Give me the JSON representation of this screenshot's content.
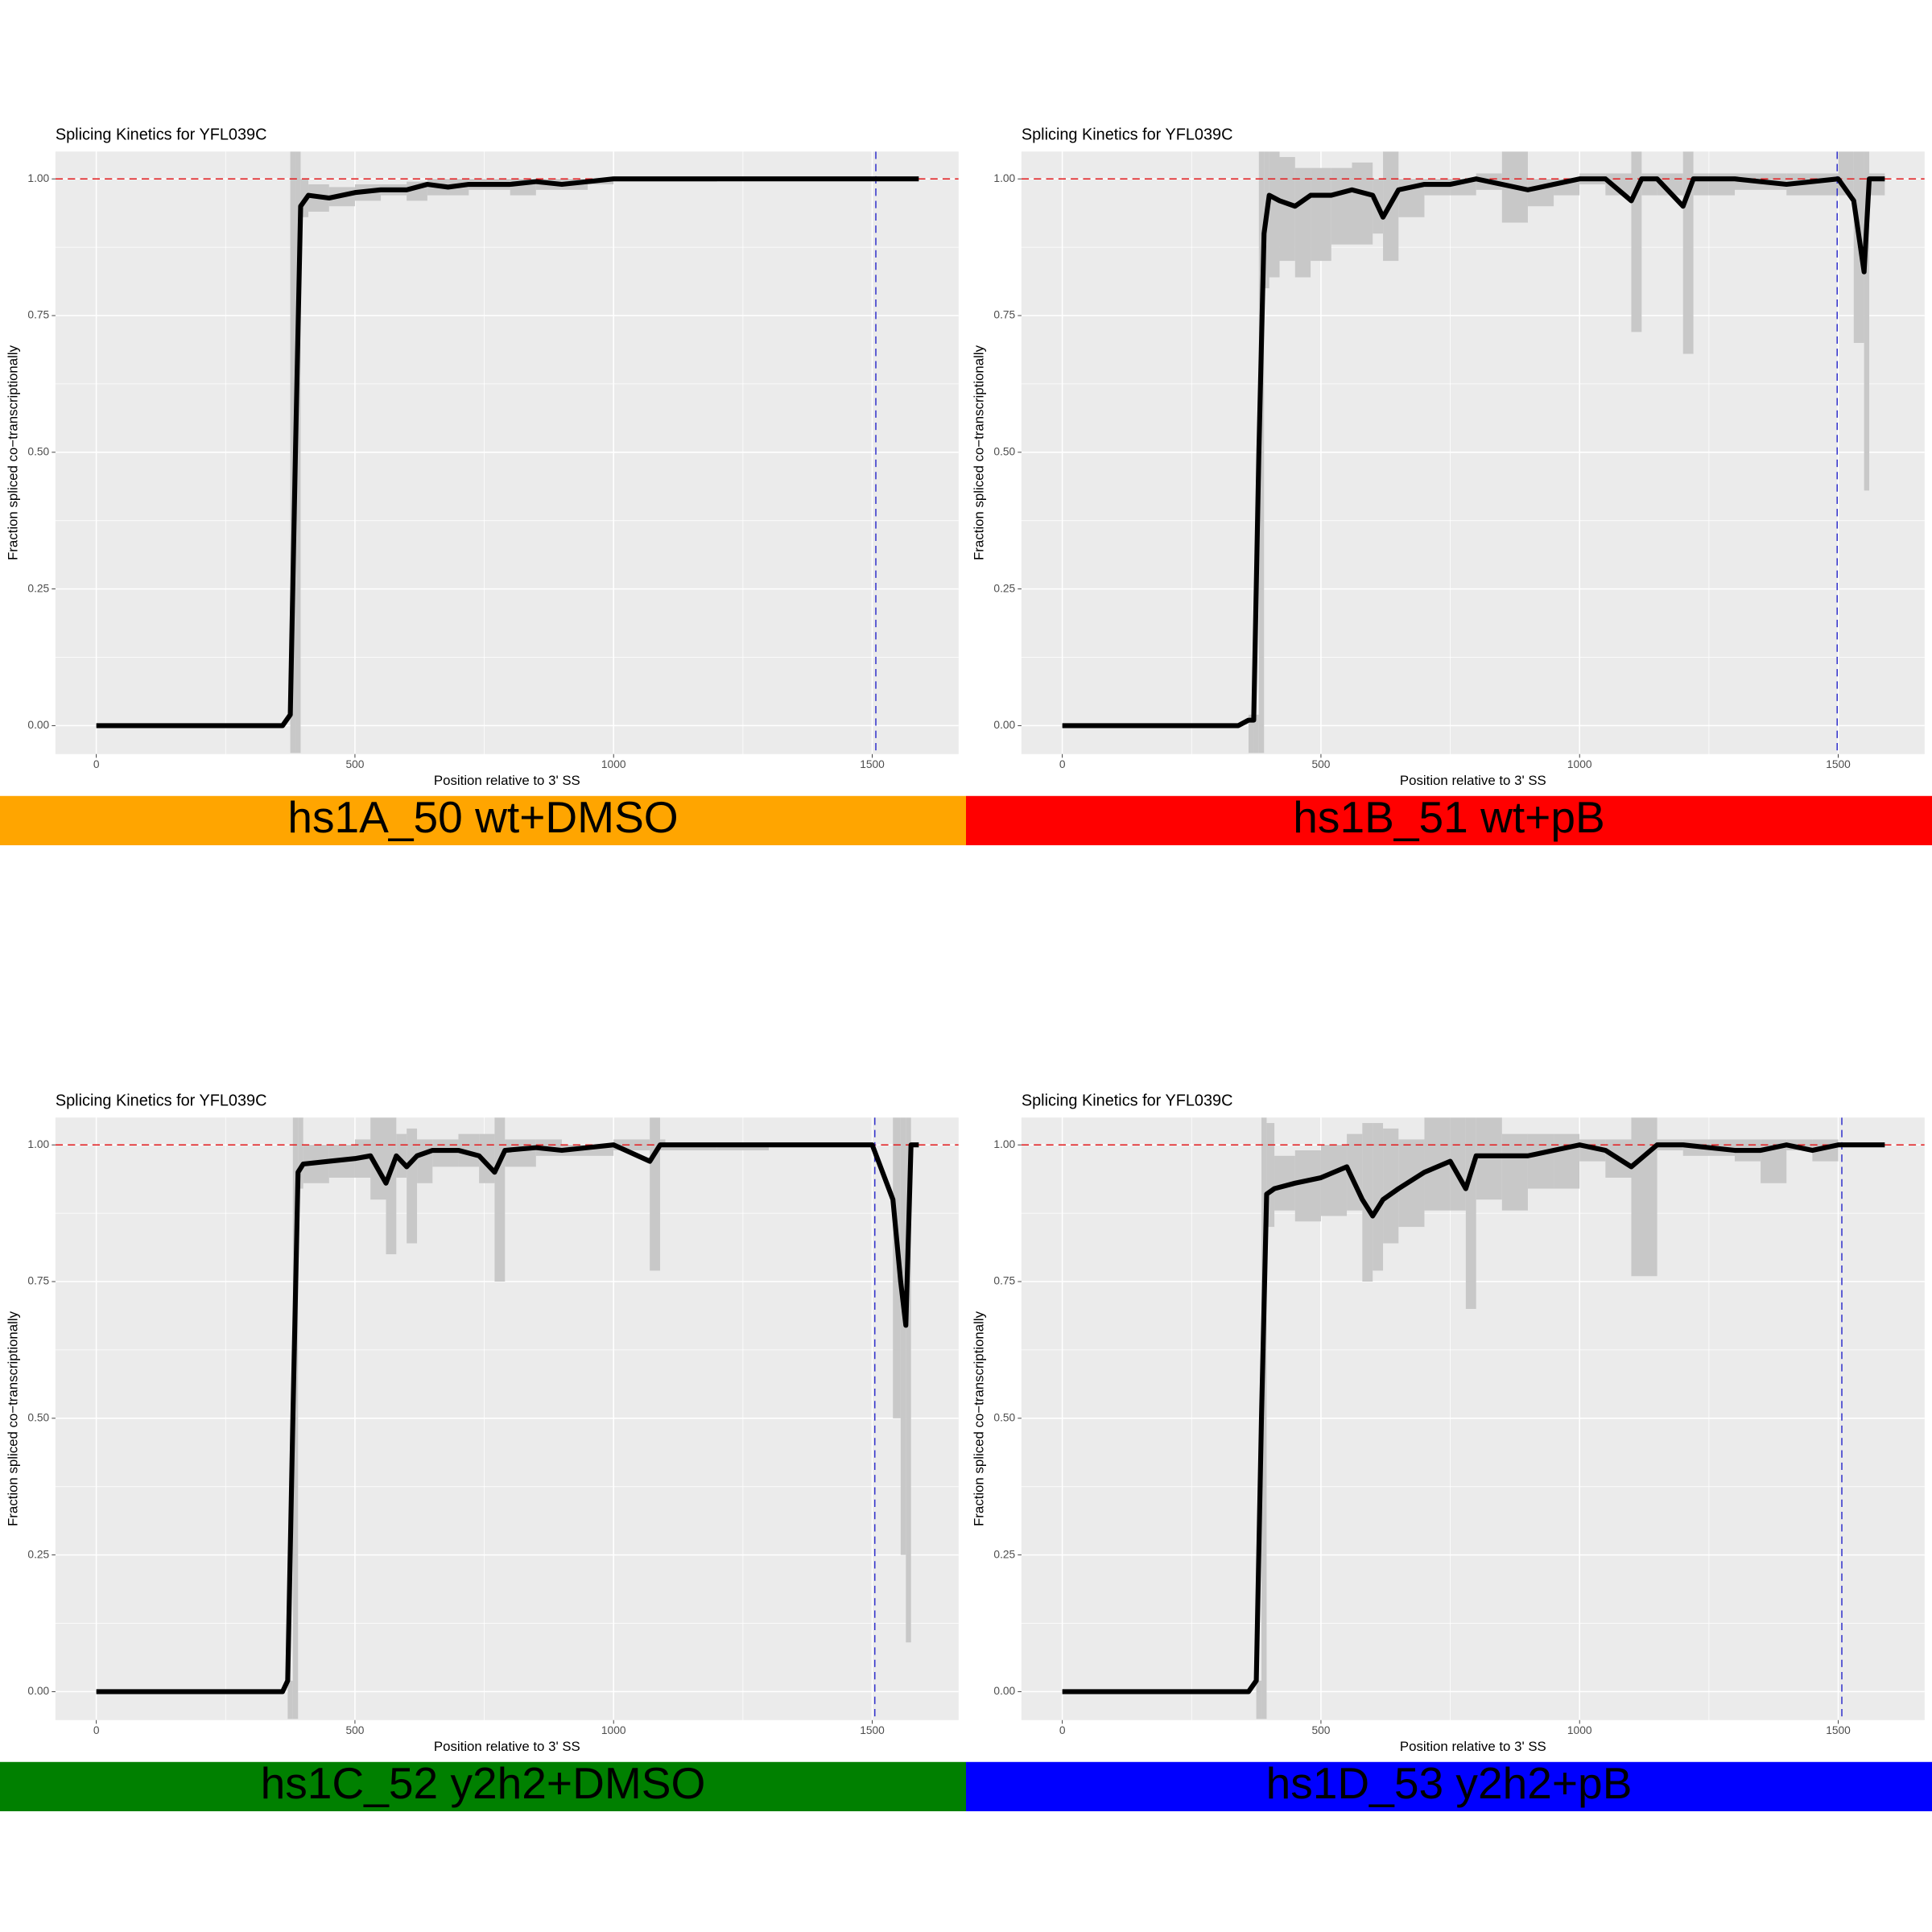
{
  "chart_data": [
    {
      "type": "line",
      "title": "Splicing Kinetics for YFL039C",
      "x_label": "Position relative to 3' SS",
      "y_label": "Fraction spliced co−transcriptionally",
      "panel_label": "hs1A_50 wt+DMSO",
      "panel_color": "#ffa500",
      "xlim": [
        -79,
        1667
      ],
      "ylim": [
        -0.052,
        1.05
      ],
      "xticks": [
        0,
        500,
        1000,
        1500
      ],
      "yticks": [
        {
          "value": 0,
          "label": "0.00"
        },
        {
          "value": 0.25,
          "label": "0.25"
        },
        {
          "value": 0.5,
          "label": "0.50"
        },
        {
          "value": 0.75,
          "label": "0.75"
        },
        {
          "value": 1,
          "label": "1.00"
        }
      ],
      "grid": true,
      "line_color": "#000000",
      "ribbon_color": "#c8c8c8",
      "hline": 1,
      "hline_color": "#e41a1c",
      "vline": 1507,
      "vline_color": "#3333cc",
      "x": [
        0,
        360,
        375,
        385,
        395,
        410,
        450,
        500,
        550,
        600,
        640,
        680,
        720,
        760,
        800,
        850,
        900,
        950,
        1000,
        1100,
        1200,
        1300,
        1400,
        1500,
        1590
      ],
      "values": [
        0,
        0,
        0.02,
        0.5,
        0.95,
        0.97,
        0.965,
        0.975,
        0.98,
        0.98,
        0.99,
        0.985,
        0.99,
        0.99,
        0.99,
        0.995,
        0.99,
        0.995,
        1,
        1,
        1,
        1,
        1,
        1,
        1
      ],
      "lower": [
        0,
        0,
        -0.05,
        -0.05,
        0.93,
        0.94,
        0.95,
        0.96,
        0.97,
        0.96,
        0.97,
        0.97,
        0.98,
        0.98,
        0.97,
        0.98,
        0.98,
        0.99,
        0.995,
        0.995,
        1,
        1,
        1,
        1,
        1
      ],
      "upper": [
        0,
        0,
        1.05,
        1.05,
        1.0,
        0.99,
        0.985,
        0.99,
        0.99,
        0.995,
        1,
        1,
        1,
        1,
        1,
        1,
        1,
        1,
        1,
        1,
        1,
        1,
        1,
        1,
        1
      ]
    },
    {
      "type": "line",
      "title": "Splicing Kinetics for YFL039C",
      "x_label": "Position relative to 3' SS",
      "y_label": "Fraction spliced co−transcriptionally",
      "panel_label": "hs1B_51 wt+pB",
      "panel_color": "#ff0000",
      "xlim": [
        -79,
        1667
      ],
      "ylim": [
        -0.052,
        1.05
      ],
      "xticks": [
        0,
        500,
        1000,
        1500
      ],
      "yticks": [
        {
          "value": 0,
          "label": "0.00"
        },
        {
          "value": 0.25,
          "label": "0.25"
        },
        {
          "value": 0.5,
          "label": "0.50"
        },
        {
          "value": 0.75,
          "label": "0.75"
        },
        {
          "value": 1,
          "label": "1.00"
        }
      ],
      "grid": true,
      "line_color": "#000000",
      "ribbon_color": "#c8c8c8",
      "hline": 1,
      "hline_color": "#e41a1c",
      "vline": 1498,
      "vline_color": "#3333cc",
      "x": [
        0,
        340,
        360,
        370,
        380,
        390,
        400,
        420,
        450,
        480,
        520,
        560,
        600,
        620,
        650,
        700,
        750,
        800,
        850,
        900,
        950,
        1000,
        1050,
        1100,
        1120,
        1150,
        1200,
        1220,
        1250,
        1300,
        1400,
        1500,
        1530,
        1550,
        1560,
        1590
      ],
      "values": [
        0,
        0,
        0.01,
        0.01,
        0.5,
        0.9,
        0.97,
        0.96,
        0.95,
        0.97,
        0.97,
        0.98,
        0.97,
        0.93,
        0.98,
        0.99,
        0.99,
        1,
        0.99,
        0.98,
        0.99,
        1,
        1,
        0.96,
        1,
        1,
        0.95,
        1,
        1,
        1,
        0.99,
        1,
        0.96,
        0.83,
        1,
        1
      ],
      "lower": [
        0,
        0,
        -0.05,
        -0.05,
        -0.05,
        0.8,
        0.82,
        0.85,
        0.82,
        0.85,
        0.88,
        0.88,
        0.9,
        0.85,
        0.93,
        0.97,
        0.97,
        0.98,
        0.92,
        0.95,
        0.97,
        0.99,
        0.97,
        0.72,
        0.97,
        0.97,
        0.68,
        0.97,
        0.97,
        0.98,
        0.97,
        0.97,
        0.7,
        0.43,
        0.97,
        1
      ],
      "upper": [
        0,
        0,
        0.02,
        0.02,
        1.05,
        1.05,
        1.05,
        1.04,
        1.02,
        1.02,
        1.02,
        1.03,
        1.0,
        1.05,
        1.0,
        1.0,
        1.0,
        1.01,
        1.05,
        1.0,
        1.0,
        1.01,
        1.01,
        1.05,
        1.01,
        1.01,
        1.05,
        1.01,
        1.01,
        1.01,
        1.01,
        1.05,
        1.05,
        1.05,
        1.01,
        1
      ]
    },
    {
      "type": "line",
      "title": "Splicing Kinetics for YFL039C",
      "x_label": "Position relative to 3' SS",
      "y_label": "Fraction spliced co−transcriptionally",
      "panel_label": "hs1C_52 y2h2+DMSO",
      "panel_color": "#008000",
      "xlim": [
        -79,
        1667
      ],
      "ylim": [
        -0.052,
        1.05
      ],
      "xticks": [
        0,
        500,
        1000,
        1500
      ],
      "yticks": [
        {
          "value": 0,
          "label": "0.00"
        },
        {
          "value": 0.25,
          "label": "0.25"
        },
        {
          "value": 0.5,
          "label": "0.50"
        },
        {
          "value": 0.75,
          "label": "0.75"
        },
        {
          "value": 1,
          "label": "1.00"
        }
      ],
      "grid": true,
      "line_color": "#000000",
      "ribbon_color": "#c8c8c8",
      "hline": 1,
      "hline_color": "#e41a1c",
      "vline": 1505,
      "vline_color": "#3333cc",
      "x": [
        0,
        360,
        370,
        380,
        390,
        400,
        450,
        500,
        530,
        560,
        580,
        600,
        620,
        650,
        700,
        740,
        770,
        790,
        850,
        900,
        1000,
        1070,
        1090,
        1100,
        1200,
        1300,
        1400,
        1500,
        1540,
        1555,
        1565,
        1575,
        1590
      ],
      "values": [
        0,
        0,
        0.02,
        0.5,
        0.95,
        0.965,
        0.97,
        0.975,
        0.98,
        0.93,
        0.98,
        0.96,
        0.98,
        0.99,
        0.99,
        0.98,
        0.95,
        0.99,
        0.995,
        0.99,
        1,
        0.97,
        1,
        1,
        1,
        1,
        1,
        1,
        0.9,
        0.75,
        0.67,
        1,
        1
      ],
      "lower": [
        0,
        0,
        -0.05,
        -0.05,
        0.92,
        0.93,
        0.94,
        0.94,
        0.9,
        0.8,
        0.94,
        0.82,
        0.93,
        0.96,
        0.96,
        0.93,
        0.75,
        0.96,
        0.98,
        0.98,
        0.99,
        0.77,
        0.99,
        0.99,
        0.99,
        1,
        1,
        1,
        0.5,
        0.25,
        0.09,
        1,
        1
      ],
      "upper": [
        0,
        0,
        0.02,
        1.05,
        1.05,
        1.0,
        1.0,
        1.01,
        1.05,
        1.05,
        1.02,
        1.03,
        1.01,
        1.01,
        1.02,
        1.02,
        1.05,
        1.01,
        1.01,
        1.0,
        1.01,
        1.05,
        1.01,
        1.0,
        1.0,
        1.0,
        1.0,
        1.0,
        1.05,
        1.05,
        1.05,
        1,
        1
      ]
    },
    {
      "type": "line",
      "title": "Splicing Kinetics for YFL039C",
      "x_label": "Position relative to 3' SS",
      "y_label": "Fraction spliced co−transcriptionally",
      "panel_label": "hs1D_53 y2h2+pB",
      "panel_color": "#0000ff",
      "xlim": [
        -79,
        1667
      ],
      "ylim": [
        -0.052,
        1.05
      ],
      "xticks": [
        0,
        500,
        1000,
        1500
      ],
      "yticks": [
        {
          "value": 0,
          "label": "0.00"
        },
        {
          "value": 0.25,
          "label": "0.25"
        },
        {
          "value": 0.5,
          "label": "0.50"
        },
        {
          "value": 0.75,
          "label": "0.75"
        },
        {
          "value": 1,
          "label": "1.00"
        }
      ],
      "grid": true,
      "line_color": "#000000",
      "ribbon_color": "#c8c8c8",
      "hline": 1,
      "hline_color": "#e41a1c",
      "vline": 1507,
      "vline_color": "#3333cc",
      "x": [
        0,
        360,
        375,
        385,
        395,
        410,
        450,
        500,
        550,
        580,
        600,
        620,
        650,
        700,
        750,
        780,
        800,
        850,
        900,
        950,
        1000,
        1050,
        1100,
        1150,
        1200,
        1300,
        1350,
        1400,
        1450,
        1500,
        1590
      ],
      "values": [
        0,
        0,
        0.02,
        0.5,
        0.91,
        0.92,
        0.93,
        0.94,
        0.96,
        0.9,
        0.87,
        0.9,
        0.92,
        0.95,
        0.97,
        0.92,
        0.98,
        0.98,
        0.98,
        0.99,
        1,
        0.99,
        0.96,
        1,
        1,
        0.99,
        0.99,
        1,
        0.99,
        1,
        1
      ],
      "lower": [
        0,
        0,
        -0.05,
        -0.05,
        0.85,
        0.88,
        0.86,
        0.87,
        0.88,
        0.75,
        0.77,
        0.82,
        0.85,
        0.88,
        0.88,
        0.7,
        0.9,
        0.88,
        0.92,
        0.92,
        0.97,
        0.94,
        0.76,
        0.99,
        0.98,
        0.97,
        0.93,
        0.99,
        0.97,
        1,
        1
      ],
      "upper": [
        0,
        0,
        0.02,
        1.05,
        1.04,
        0.98,
        0.99,
        1.0,
        1.02,
        1.04,
        1.04,
        1.03,
        1.01,
        1.05,
        1.05,
        1.05,
        1.05,
        1.02,
        1.02,
        1.02,
        1.01,
        1.01,
        1.05,
        1.01,
        1.01,
        1.01,
        1.01,
        1.01,
        1.01,
        1,
        1
      ]
    }
  ]
}
